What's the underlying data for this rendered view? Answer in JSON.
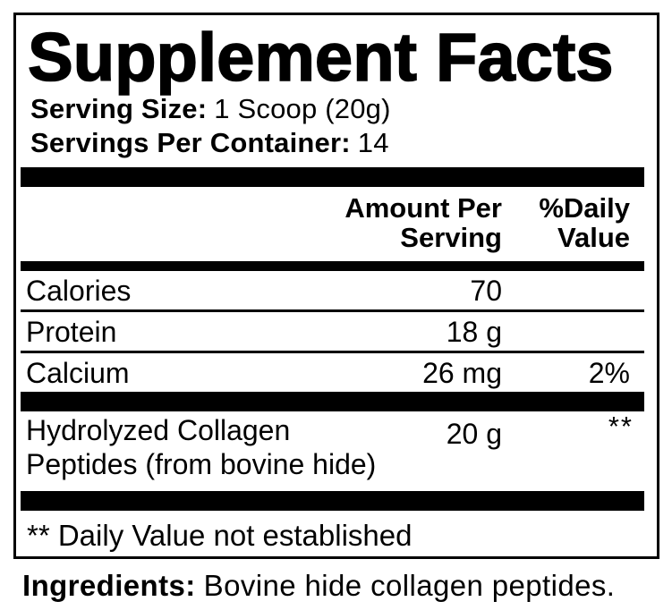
{
  "colors": {
    "ink": "#000000",
    "background": "#ffffff"
  },
  "label": {
    "title": "Supplement Facts",
    "serving_size": {
      "label": "Serving Size:",
      "value": "1 Scoop (20g)"
    },
    "servings_per_container": {
      "label": "Servings Per Container:",
      "value": "14"
    },
    "columns": {
      "amount": "Amount Per Serving",
      "daily_value": "%Daily Value"
    },
    "rows": [
      {
        "name": "Calories",
        "amount": "70",
        "daily_value": ""
      },
      {
        "name": "Protein",
        "amount": "18 g",
        "daily_value": ""
      },
      {
        "name": "Calcium",
        "amount": "26 mg",
        "daily_value": "2%"
      }
    ],
    "special_row": {
      "name": "Hydrolyzed Collagen Peptides (from bovine hide)",
      "amount": "20 g",
      "daily_value": "**"
    },
    "footnote": "** Daily Value not established",
    "ingredients": {
      "label": "Ingredients:",
      "value": "Bovine hide collagen peptides."
    }
  }
}
